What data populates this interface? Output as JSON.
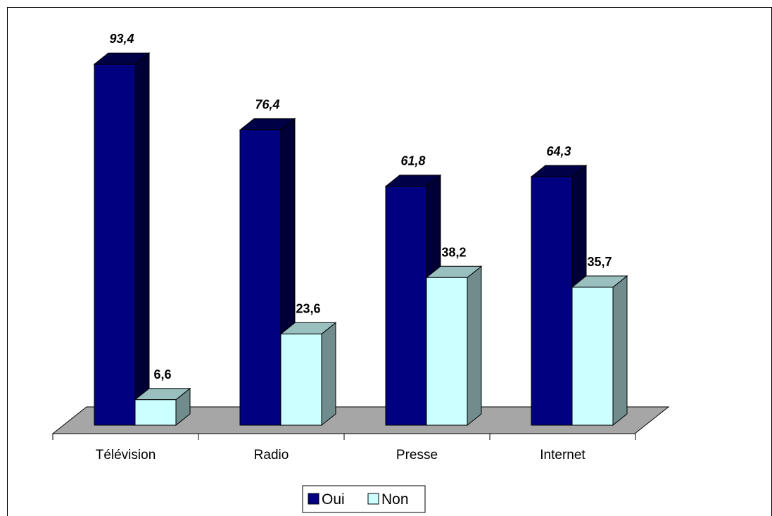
{
  "chart_data": {
    "type": "bar",
    "categories": [
      "Télévision",
      "Radio",
      "Presse",
      "Internet"
    ],
    "series": [
      {
        "name": "Oui",
        "values": [
          93.4,
          76.4,
          61.8,
          64.3
        ],
        "labels": [
          "93,4",
          "76,4",
          "61,8",
          "64,3"
        ],
        "color": "#000080"
      },
      {
        "name": "Non",
        "values": [
          6.6,
          23.6,
          38.2,
          35.7
        ],
        "labels": [
          "6,6",
          "23,6",
          "38,2",
          "35,7"
        ],
        "color": "#CCFFFF"
      }
    ],
    "ylim": [
      0,
      100
    ],
    "three_d": true,
    "floor_color": "#A6A6A6",
    "legend": "bottom"
  }
}
